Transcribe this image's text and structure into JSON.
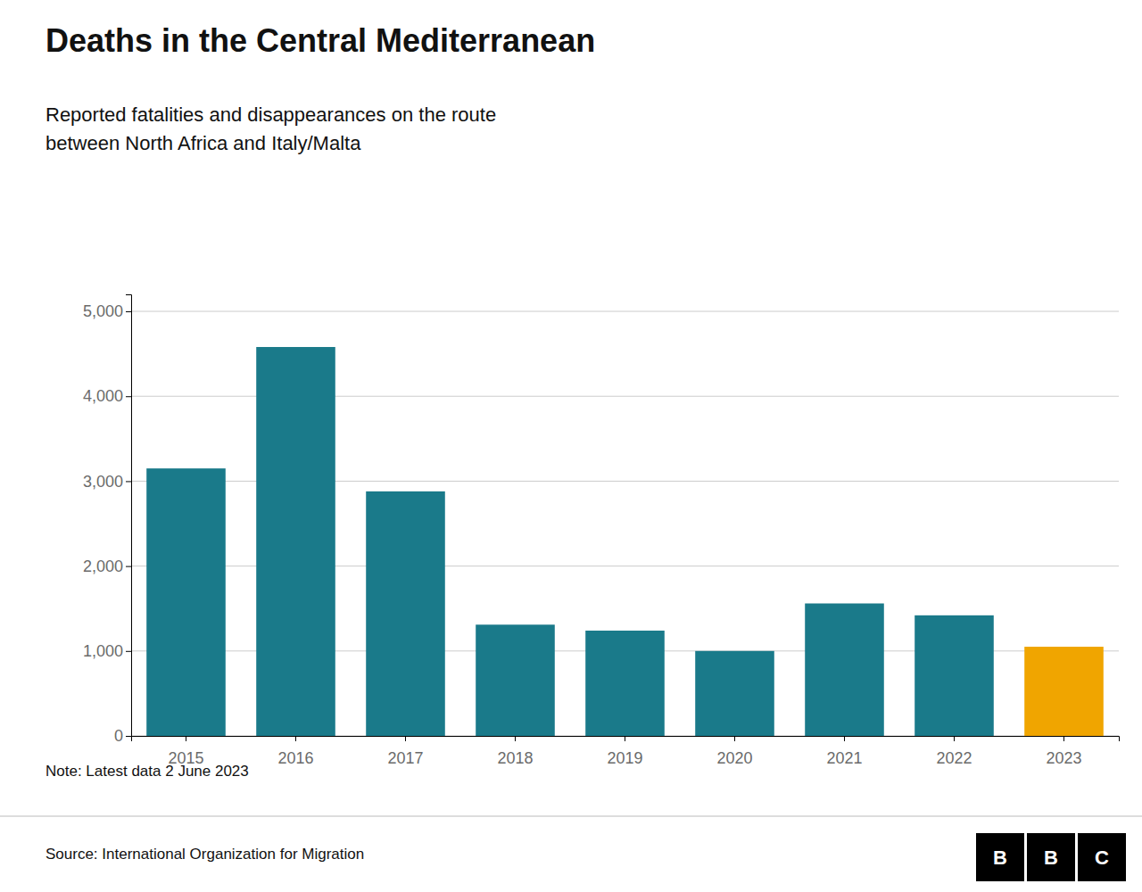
{
  "chart_data": {
    "type": "bar",
    "title": "Deaths in the Central Mediterranean",
    "subtitle": "Reported fatalities and disappearances on the route\nbetween North Africa and Italy/Malta",
    "note": "Note: Latest data 2 June 2023",
    "source": "Source: International Organization for Migration",
    "logo": [
      "B",
      "B",
      "C"
    ],
    "categories": [
      "2015",
      "2016",
      "2017",
      "2018",
      "2019",
      "2020",
      "2021",
      "2022",
      "2023"
    ],
    "values": [
      3150,
      4580,
      2880,
      1310,
      1240,
      1000,
      1560,
      1420,
      1050
    ],
    "colors": [
      "#1a7a8a",
      "#1a7a8a",
      "#1a7a8a",
      "#1a7a8a",
      "#1a7a8a",
      "#1a7a8a",
      "#1a7a8a",
      "#1a7a8a",
      "#f0a500"
    ],
    "ylim": [
      0,
      5200
    ],
    "yticks": [
      0,
      {
        "value": 1000,
        "label": "1,000"
      },
      {
        "value": 2000,
        "label": "2,000"
      },
      {
        "value": 3000,
        "label": "3,000"
      },
      {
        "value": 4000,
        "label": "4,000"
      },
      {
        "value": 5000,
        "label": "5,000"
      }
    ],
    "grid": true
  }
}
